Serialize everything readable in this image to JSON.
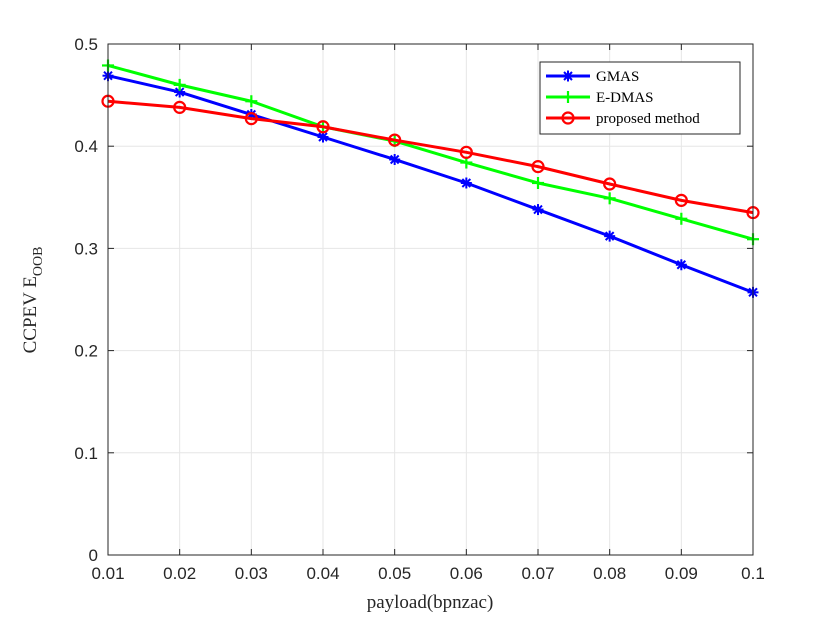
{
  "chart_data": {
    "type": "line",
    "title": "",
    "xlabel": "payload(bpnzac)",
    "ylabel": "CCPEV E",
    "ylabel_subscript": "OOB",
    "x": [
      0.01,
      0.02,
      0.03,
      0.04,
      0.05,
      0.06,
      0.07,
      0.08,
      0.09,
      0.1
    ],
    "xlim": [
      0.01,
      0.1
    ],
    "ylim": [
      0,
      0.5
    ],
    "xticks": [
      "0.01",
      "0.02",
      "0.03",
      "0.04",
      "0.05",
      "0.06",
      "0.07",
      "0.08",
      "0.09",
      "0.1"
    ],
    "yticks": [
      "0",
      "0.1",
      "0.2",
      "0.3",
      "0.4",
      "0.5"
    ],
    "grid": true,
    "legend_position": "top-right",
    "series": [
      {
        "name": "GMAS",
        "color": "#0000ff",
        "marker": "asterisk",
        "values": [
          0.469,
          0.453,
          0.431,
          0.409,
          0.387,
          0.364,
          0.338,
          0.312,
          0.284,
          0.257
        ]
      },
      {
        "name": "E-DMAS",
        "color": "#00ff00",
        "marker": "plus",
        "values": [
          0.479,
          0.46,
          0.444,
          0.419,
          0.405,
          0.384,
          0.364,
          0.349,
          0.329,
          0.309
        ]
      },
      {
        "name": "proposed method",
        "color": "#ff0000",
        "marker": "circle",
        "values": [
          0.444,
          0.438,
          0.427,
          0.419,
          0.406,
          0.394,
          0.38,
          0.363,
          0.347,
          0.335
        ]
      }
    ]
  }
}
